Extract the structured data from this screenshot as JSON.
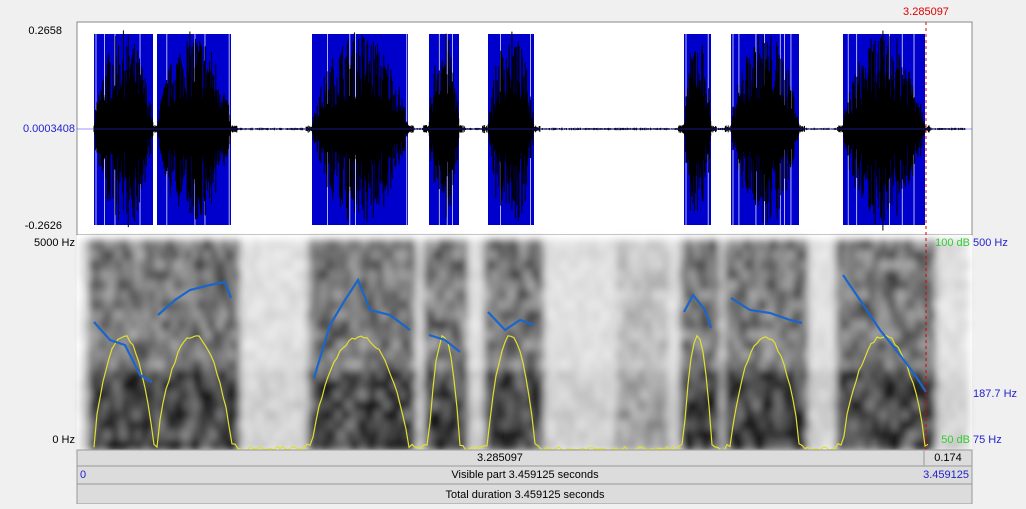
{
  "waveform": {
    "max": "0.2658",
    "zero": "0.0003408",
    "min": "-0.2626",
    "cursor": "3.285097"
  },
  "spectrogram": {
    "top_freq": "5000 Hz",
    "bottom_freq": "0 Hz",
    "intensity_top": "100 dB",
    "pitch_top": "500 Hz",
    "pitch_cursor": "187.7 Hz",
    "intensity_bottom": "50 dB",
    "pitch_bottom": "75 Hz"
  },
  "time_bars": {
    "cursor_time": "3.285097",
    "cursor_remaining": "0.174",
    "visible_start": "0",
    "visible_part": "Visible part 3.459125 seconds",
    "visible_end": "3.459125",
    "total_duration": "Total duration 3.459125 seconds"
  }
}
